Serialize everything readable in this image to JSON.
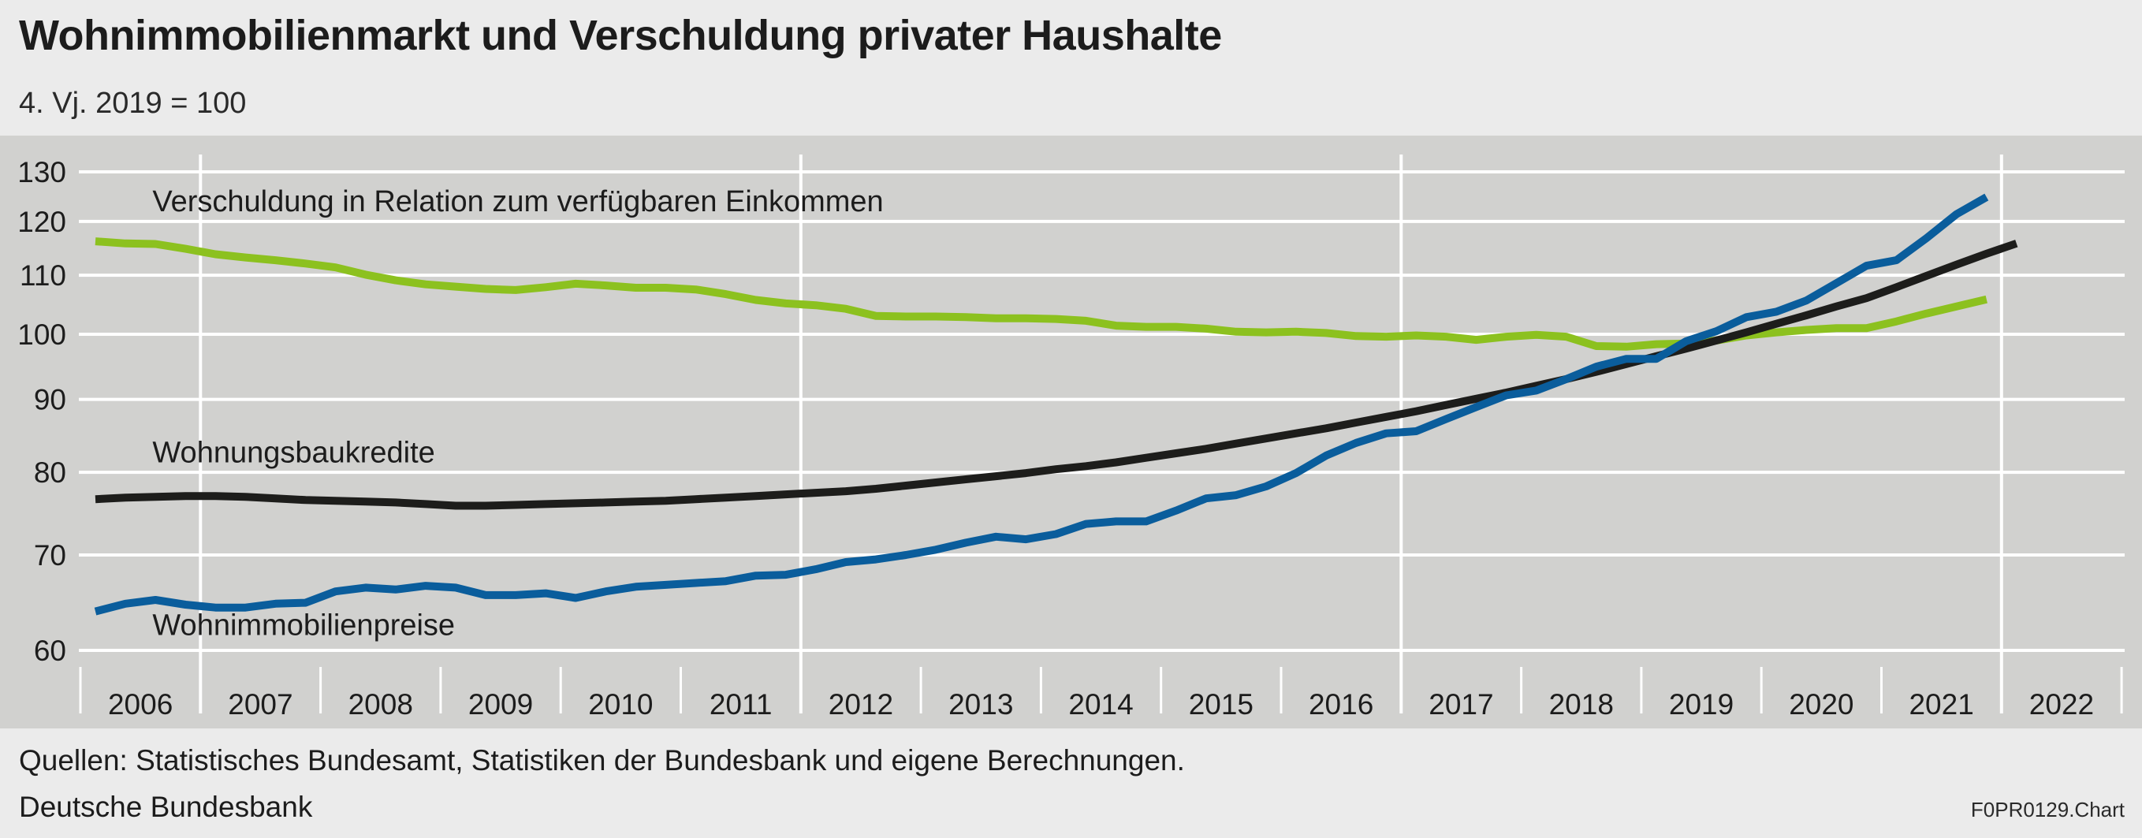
{
  "header": {
    "title": "Wohnimmobilienmarkt und Verschuldung privater Haushalte",
    "subtitle": "4. Vj. 2019 = 100"
  },
  "footer": {
    "source": "Quellen: Statistisches Bundesamt, Statistiken der Bundesbank und eigene Berechnungen.",
    "publisher": "Deutsche Bundesbank",
    "code": "F0PR0129.Chart"
  },
  "colors": {
    "background": "#ebebeb",
    "plot_background": "#d1d1cf",
    "grid": "#ffffff",
    "verschuldung": "#8cc11f",
    "wohnungsbaukredite": "#1d1d1b",
    "wohnimmobilienpreise": "#0a5d9c"
  },
  "chart_data": {
    "type": "line",
    "title": "Wohnimmobilienmarkt und Verschuldung privater Haushalte",
    "subtitle": "4. Vj. 2019 = 100",
    "y_scale": "log",
    "ylim": [
      60,
      130
    ],
    "yticks": [
      60,
      70,
      80,
      90,
      100,
      110,
      120,
      130
    ],
    "x_tick_labels": [
      "2006",
      "2007",
      "2008",
      "2009",
      "2010",
      "2011",
      "2012",
      "2013",
      "2014",
      "2015",
      "2016",
      "2017",
      "2018",
      "2019",
      "2020",
      "2021",
      "2022"
    ],
    "xlim": [
      2006,
      2023
    ],
    "grid": true,
    "legend": "inline labels",
    "series": [
      {
        "name": "Verschuldung in Relation zum verfügbaren Einkommen",
        "color": "#8cc11f",
        "x": [
          2006.125,
          2006.375,
          2006.625,
          2006.875,
          2007.125,
          2007.375,
          2007.625,
          2007.875,
          2008.125,
          2008.375,
          2008.625,
          2008.875,
          2009.125,
          2009.375,
          2009.625,
          2009.875,
          2010.125,
          2010.375,
          2010.625,
          2010.875,
          2011.125,
          2011.375,
          2011.625,
          2011.875,
          2012.125,
          2012.375,
          2012.625,
          2012.875,
          2013.125,
          2013.375,
          2013.625,
          2013.875,
          2014.125,
          2014.375,
          2014.625,
          2014.875,
          2015.125,
          2015.375,
          2015.625,
          2015.875,
          2016.125,
          2016.375,
          2016.625,
          2016.875,
          2017.125,
          2017.375,
          2017.625,
          2017.875,
          2018.125,
          2018.375,
          2018.625,
          2018.875,
          2019.125,
          2019.375,
          2019.625,
          2019.875,
          2020.125,
          2020.375,
          2020.625,
          2020.875,
          2021.125,
          2021.375,
          2021.625,
          2021.875
        ],
        "y": [
          116.2,
          115.8,
          115.7,
          114.8,
          113.8,
          113.2,
          112.7,
          112.1,
          111.4,
          110.1,
          109.1,
          108.4,
          108.0,
          107.6,
          107.4,
          107.9,
          108.5,
          108.2,
          107.8,
          107.8,
          107.5,
          106.7,
          105.7,
          105.1,
          104.8,
          104.2,
          103.0,
          102.9,
          102.9,
          102.8,
          102.6,
          102.6,
          102.5,
          102.2,
          101.4,
          101.2,
          101.2,
          100.9,
          100.4,
          100.3,
          100.4,
          100.2,
          99.7,
          99.6,
          99.8,
          99.6,
          99.1,
          99.6,
          99.9,
          99.6,
          98.1,
          98.0,
          98.4,
          98.5,
          99.0,
          99.8,
          100.3,
          100.7,
          101.0,
          101.0,
          102.1,
          103.4,
          104.6,
          105.8
        ]
      },
      {
        "name": "Wohnungsbaukredite",
        "color": "#1d1d1b",
        "x": [
          2006.125,
          2006.375,
          2006.625,
          2006.875,
          2007.125,
          2007.375,
          2007.625,
          2007.875,
          2008.125,
          2008.375,
          2008.625,
          2008.875,
          2009.125,
          2009.375,
          2009.625,
          2009.875,
          2010.125,
          2010.375,
          2010.625,
          2010.875,
          2011.125,
          2011.375,
          2011.625,
          2011.875,
          2012.125,
          2012.375,
          2012.625,
          2012.875,
          2013.125,
          2013.375,
          2013.625,
          2013.875,
          2014.125,
          2014.375,
          2014.625,
          2014.875,
          2015.125,
          2015.375,
          2015.625,
          2015.875,
          2016.125,
          2016.375,
          2016.625,
          2016.875,
          2017.125,
          2017.375,
          2017.625,
          2017.875,
          2018.125,
          2018.375,
          2018.625,
          2018.875,
          2019.125,
          2019.375,
          2019.625,
          2019.875,
          2020.125,
          2020.375,
          2020.625,
          2020.875,
          2021.125,
          2021.375,
          2021.625,
          2021.875,
          2022.125
        ],
        "y": [
          76.6,
          76.8,
          76.9,
          77.0,
          77.0,
          76.9,
          76.7,
          76.5,
          76.4,
          76.3,
          76.2,
          76.0,
          75.8,
          75.8,
          75.9,
          76.0,
          76.1,
          76.2,
          76.3,
          76.4,
          76.6,
          76.8,
          77.0,
          77.2,
          77.4,
          77.6,
          77.9,
          78.3,
          78.7,
          79.1,
          79.5,
          79.9,
          80.4,
          80.8,
          81.3,
          81.9,
          82.5,
          83.1,
          83.8,
          84.5,
          85.2,
          85.9,
          86.7,
          87.5,
          88.3,
          89.2,
          90.1,
          91.0,
          92.0,
          93.0,
          94.1,
          95.3,
          96.5,
          97.7,
          99.0,
          100.3,
          101.7,
          103.1,
          104.6,
          106.0,
          107.9,
          109.9,
          111.9,
          113.9,
          115.8
        ]
      },
      {
        "name": "Wohnimmobilienpreise",
        "color": "#0a5d9c",
        "x": [
          2006.125,
          2006.375,
          2006.625,
          2006.875,
          2007.125,
          2007.375,
          2007.625,
          2007.875,
          2008.125,
          2008.375,
          2008.625,
          2008.875,
          2009.125,
          2009.375,
          2009.625,
          2009.875,
          2010.125,
          2010.375,
          2010.625,
          2010.875,
          2011.125,
          2011.375,
          2011.625,
          2011.875,
          2012.125,
          2012.375,
          2012.625,
          2012.875,
          2013.125,
          2013.375,
          2013.625,
          2013.875,
          2014.125,
          2014.375,
          2014.625,
          2014.875,
          2015.125,
          2015.375,
          2015.625,
          2015.875,
          2016.125,
          2016.375,
          2016.625,
          2016.875,
          2017.125,
          2017.375,
          2017.625,
          2017.875,
          2018.125,
          2018.375,
          2018.625,
          2018.875,
          2019.125,
          2019.375,
          2019.625,
          2019.875,
          2020.125,
          2020.375,
          2020.625,
          2020.875,
          2021.125,
          2021.375,
          2021.625,
          2021.875
        ],
        "y": [
          63.9,
          64.7,
          65.1,
          64.6,
          64.3,
          64.3,
          64.7,
          64.8,
          66.0,
          66.4,
          66.2,
          66.6,
          66.4,
          65.6,
          65.6,
          65.8,
          65.3,
          66.0,
          66.5,
          66.7,
          66.9,
          67.1,
          67.7,
          67.8,
          68.4,
          69.2,
          69.5,
          70.0,
          70.6,
          71.4,
          72.1,
          71.8,
          72.4,
          73.6,
          73.9,
          73.9,
          75.2,
          76.7,
          77.1,
          78.2,
          79.9,
          82.2,
          83.9,
          85.2,
          85.5,
          87.2,
          88.9,
          90.6,
          91.3,
          93.0,
          94.9,
          96.1,
          96.1,
          98.9,
          100.5,
          102.8,
          103.7,
          105.6,
          108.6,
          111.7,
          112.7,
          116.8,
          121.4,
          124.8
        ]
      }
    ],
    "annotations": [
      {
        "text": "Verschuldung in Relation zum verfügbaren Einkommen",
        "x": 2006.6,
        "y": 122
      },
      {
        "text": "Wohnungsbaukredite",
        "x": 2006.6,
        "y": 81.3
      },
      {
        "text": "Wohnimmobilienpreise",
        "x": 2006.6,
        "y": 61.5
      }
    ]
  }
}
